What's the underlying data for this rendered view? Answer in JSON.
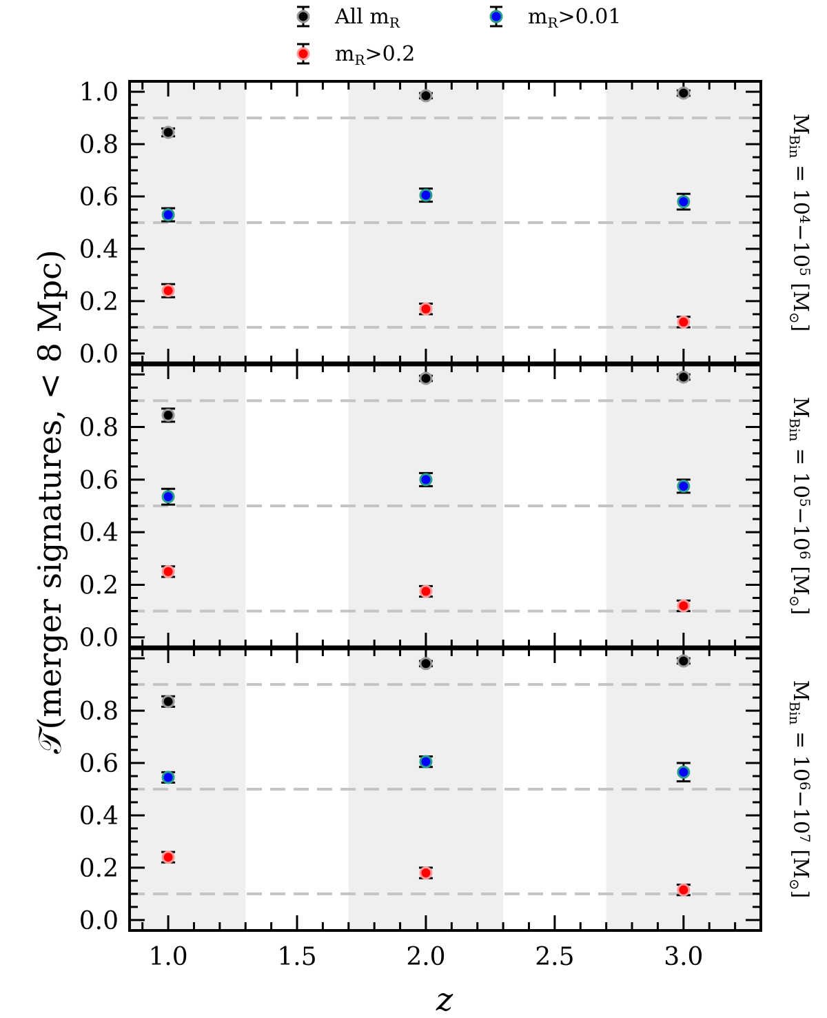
{
  "chart_data": {
    "type": "scatter",
    "ylabel": "𝒯(merger signatures, < 8 Mpc)",
    "xlabel": "z",
    "xlim": [
      0.85,
      3.3
    ],
    "xticks": [
      "1.0",
      "1.5",
      "2.0",
      "2.5",
      "3.0"
    ],
    "shaded_x_bands": [
      [
        0.85,
        1.3
      ],
      [
        1.7,
        2.3
      ],
      [
        2.7,
        3.3
      ]
    ],
    "reference_lines_y": [
      0.1,
      0.5,
      0.9
    ],
    "grid": false,
    "legend": {
      "placement": "top-center",
      "entries": [
        {
          "label": "All m_R",
          "text": "All m",
          "sub": "R",
          "suffix": "",
          "color": "#000000",
          "edge": "#999999"
        },
        {
          "label": "m_R>0.2",
          "text": "m",
          "sub": "R",
          "suffix": ">0.2",
          "color": "#ff0000",
          "edge": "#ff9999"
        },
        {
          "label": "m_R>0.01",
          "text": "m",
          "sub": "R",
          "suffix": ">0.01",
          "color": "#0000ff",
          "edge": "#2a9d8f"
        }
      ]
    },
    "panels": [
      {
        "right_label": "M_Bin = 10^4 – 10^5 [M_sun]",
        "label_parts": {
          "lo": "4",
          "hi": "5"
        },
        "ylim": [
          -0.04,
          1.04
        ],
        "yticks": [
          "0.0",
          "0.2",
          "0.4",
          "0.6",
          "0.8",
          "1.0"
        ],
        "series": [
          {
            "name": "All m_R",
            "x": [
              1.0,
              2.0,
              3.0
            ],
            "y": [
              0.845,
              0.985,
              0.995
            ],
            "yerr": [
              0.015,
              0.01,
              0.01
            ]
          },
          {
            "name": "m_R>0.01",
            "x": [
              1.0,
              2.0,
              3.0
            ],
            "y": [
              0.53,
              0.605,
              0.58
            ],
            "yerr": [
              0.025,
              0.025,
              0.03
            ]
          },
          {
            "name": "m_R>0.2",
            "x": [
              1.0,
              2.0,
              3.0
            ],
            "y": [
              0.24,
              0.17,
              0.12
            ],
            "yerr": [
              0.025,
              0.02,
              0.02
            ]
          }
        ]
      },
      {
        "right_label": "M_Bin = 10^5 – 10^6 [M_sun]",
        "label_parts": {
          "lo": "5",
          "hi": "6"
        },
        "ylim": [
          -0.04,
          1.04
        ],
        "yticks": [
          "0.0",
          "0.2",
          "0.4",
          "0.6",
          "0.8"
        ],
        "series": [
          {
            "name": "All m_R",
            "x": [
              1.0,
              2.0,
              3.0
            ],
            "y": [
              0.845,
              0.985,
              0.99
            ],
            "yerr": [
              0.025,
              0.01,
              0.01
            ]
          },
          {
            "name": "m_R>0.01",
            "x": [
              1.0,
              2.0,
              3.0
            ],
            "y": [
              0.535,
              0.6,
              0.575
            ],
            "yerr": [
              0.03,
              0.025,
              0.025
            ]
          },
          {
            "name": "m_R>0.2",
            "x": [
              1.0,
              2.0,
              3.0
            ],
            "y": [
              0.25,
              0.175,
              0.12
            ],
            "yerr": [
              0.02,
              0.02,
              0.02
            ]
          }
        ]
      },
      {
        "right_label": "M_Bin = 10^6 – 10^7 [M_sun]",
        "label_parts": {
          "lo": "6",
          "hi": "7"
        },
        "ylim": [
          -0.04,
          1.04
        ],
        "yticks": [
          "0.0",
          "0.2",
          "0.4",
          "0.6",
          "0.8"
        ],
        "series": [
          {
            "name": "All m_R",
            "x": [
              1.0,
              2.0,
              3.0
            ],
            "y": [
              0.835,
              0.98,
              0.99
            ],
            "yerr": [
              0.02,
              0.01,
              0.01
            ]
          },
          {
            "name": "m_R>0.01",
            "x": [
              1.0,
              2.0,
              3.0
            ],
            "y": [
              0.545,
              0.605,
              0.565
            ],
            "yerr": [
              0.02,
              0.02,
              0.035
            ]
          },
          {
            "name": "m_R>0.2",
            "x": [
              1.0,
              2.0,
              3.0
            ],
            "y": [
              0.24,
              0.18,
              0.115
            ],
            "yerr": [
              0.02,
              0.02,
              0.02
            ]
          }
        ]
      }
    ]
  }
}
